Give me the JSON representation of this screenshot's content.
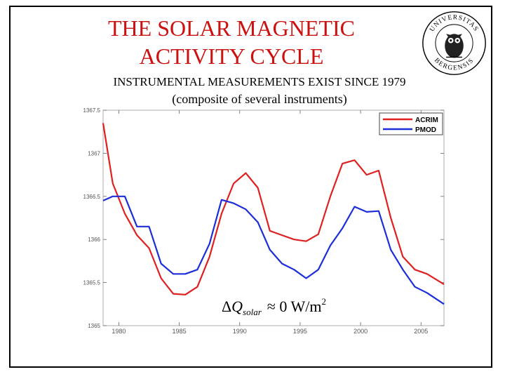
{
  "slide": {
    "title_line1": "THE SOLAR MAGNETIC",
    "title_line2": "ACTIVITY CYCLE",
    "subtitle1": "INSTRUMENTAL MEASUREMENTS  EXIST SINCE 1979",
    "subtitle2": "(composite of several instruments)",
    "seal_text": "UNIVERSITAS BERGENSIS"
  },
  "chart_data": {
    "type": "line",
    "title": "",
    "xlabel": "",
    "ylabel": "",
    "xlim": [
      1978.7,
      2006.9
    ],
    "ylim": [
      1365,
      1367.5
    ],
    "xticks": [
      1980,
      1985,
      1990,
      1995,
      2000,
      2005
    ],
    "xtick_labels": [
      "1980",
      "1985",
      "1990",
      "1995",
      "2000",
      "2005"
    ],
    "yticks": [
      1365,
      1365.5,
      1366,
      1366.5,
      1367,
      1367.5
    ],
    "ytick_labels": [
      "1365",
      "1365.5",
      "1366",
      "1366.5",
      "1367",
      "1367.5"
    ],
    "legend_position": "top-right",
    "annotation": {
      "delta": "Δ",
      "symbol": "Q",
      "subscript": "solar",
      "relation": "≈ 0 W/m",
      "superscript": "2"
    },
    "series": [
      {
        "name": "ACRIM",
        "color": "#e02020",
        "x": [
          1978.7,
          1979.5,
          1980.5,
          1981.5,
          1982.5,
          1983.5,
          1984.5,
          1985.5,
          1986.5,
          1987.5,
          1988.5,
          1989.5,
          1990.5,
          1991.5,
          1992.5,
          1993.5,
          1994.5,
          1995.5,
          1996.5,
          1997.5,
          1998.5,
          1999.5,
          2000.5,
          2001.5,
          2002.5,
          2003.5,
          2004.5,
          2005.5,
          2006.9
        ],
        "y": [
          1367.35,
          1366.65,
          1366.3,
          1366.05,
          1365.9,
          1365.55,
          1365.37,
          1365.36,
          1365.45,
          1365.8,
          1366.3,
          1366.65,
          1366.77,
          1366.6,
          1366.1,
          1366.05,
          1366.0,
          1365.98,
          1366.06,
          1366.5,
          1366.88,
          1366.92,
          1366.75,
          1366.8,
          1366.25,
          1365.8,
          1365.65,
          1365.6,
          1365.48
        ]
      },
      {
        "name": "PMOD",
        "color": "#1c2ed8",
        "x": [
          1978.7,
          1979.5,
          1980.5,
          1981.5,
          1982.5,
          1983.5,
          1984.5,
          1985.5,
          1986.5,
          1987.5,
          1988.5,
          1989.5,
          1990.5,
          1991.5,
          1992.5,
          1993.5,
          1994.5,
          1995.5,
          1996.5,
          1997.5,
          1998.5,
          1999.5,
          2000.5,
          2001.5,
          2002.5,
          2003.5,
          2004.5,
          2005.5,
          2006.9
        ],
        "y": [
          1366.45,
          1366.5,
          1366.5,
          1366.15,
          1366.15,
          1365.72,
          1365.6,
          1365.6,
          1365.65,
          1365.95,
          1366.46,
          1366.42,
          1366.35,
          1366.2,
          1365.88,
          1365.72,
          1365.65,
          1365.55,
          1365.65,
          1365.93,
          1366.13,
          1366.38,
          1366.32,
          1366.33,
          1365.88,
          1365.65,
          1365.45,
          1365.38,
          1365.25
        ]
      }
    ]
  }
}
